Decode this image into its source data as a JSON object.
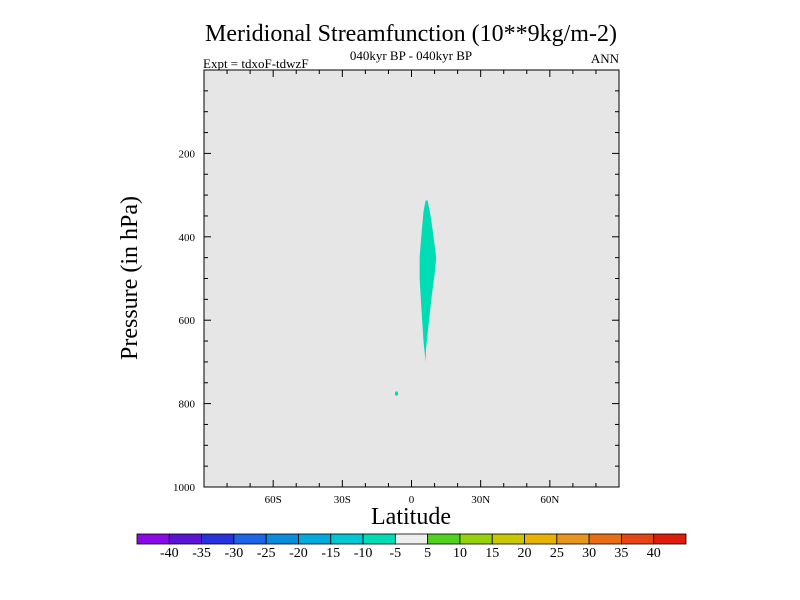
{
  "chart_data": {
    "type": "contour",
    "title": "Meridional Streamfunction (10**9kg/m-2)",
    "subtitle": "040kyr BP - 040kyr BP",
    "left_label": "Expt = tdxoF-tdwzF",
    "right_label": "ANN",
    "xlabel": "Latitude",
    "ylabel": "Pressure (in hPa)",
    "xlim": [
      -90,
      90
    ],
    "ylim": [
      0,
      1000
    ],
    "y_inverted": true,
    "x_ticks": [
      {
        "value": -60,
        "label": "60S"
      },
      {
        "value": -30,
        "label": "30S"
      },
      {
        "value": 0,
        "label": "0"
      },
      {
        "value": 30,
        "label": "30N"
      },
      {
        "value": 60,
        "label": "60N"
      }
    ],
    "y_ticks": [
      {
        "value": 200,
        "label": "200"
      },
      {
        "value": 400,
        "label": "400"
      },
      {
        "value": 600,
        "label": "600"
      },
      {
        "value": 800,
        "label": "800"
      },
      {
        "value": 1000,
        "label": "1000"
      }
    ],
    "background_level": "-5 to 5",
    "background_color": "#e6e6e6",
    "features": [
      {
        "name": "negative-cell",
        "level_range": [
          -10,
          -5
        ],
        "color": "#00dcb4",
        "outline": [
          [
            7.0,
            313
          ],
          [
            8.3,
            350
          ],
          [
            9.6,
            400
          ],
          [
            10.7,
            450
          ],
          [
            10.0,
            490
          ],
          [
            8.8,
            540
          ],
          [
            7.4,
            610
          ],
          [
            6.3,
            670
          ],
          [
            6.1,
            700
          ],
          [
            5.2,
            650
          ],
          [
            4.4,
            580
          ],
          [
            3.5,
            500
          ],
          [
            3.5,
            450
          ],
          [
            4.4,
            390
          ],
          [
            5.2,
            340
          ],
          [
            6.1,
            313
          ]
        ]
      },
      {
        "name": "small-negative-blob",
        "level_range": [
          -10,
          -5
        ],
        "color": "#00dcb4",
        "center": [
          -6.5,
          776
        ]
      }
    ],
    "colorbar": {
      "labels": [
        "-40",
        "-35",
        "-30",
        "-25",
        "-20",
        "-15",
        "-10",
        "-5",
        "5",
        "10",
        "15",
        "20",
        "25",
        "30",
        "35",
        "40"
      ],
      "colors": [
        "#8a0ae6",
        "#5a14d2",
        "#2832dc",
        "#1e64e6",
        "#0a8cdc",
        "#00aadc",
        "#00c8d2",
        "#00dcb4",
        "#eeeeee",
        "#50d21e",
        "#96d20a",
        "#c8c800",
        "#e6b400",
        "#e6961e",
        "#e66e14",
        "#e64614",
        "#dc1e0a"
      ]
    }
  }
}
